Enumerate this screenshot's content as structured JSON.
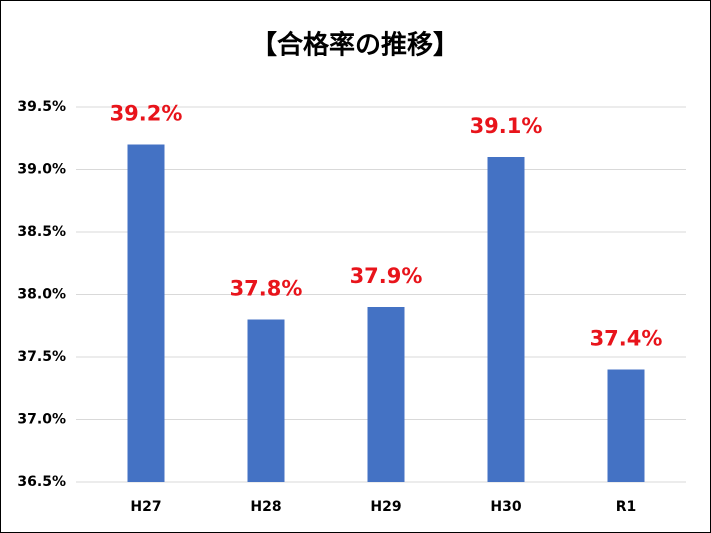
{
  "chart_data": {
    "type": "bar",
    "title": "【合格率の推移】",
    "categories": [
      "H27",
      "H28",
      "H29",
      "H30",
      "R1"
    ],
    "values": [
      39.2,
      37.8,
      37.9,
      39.1,
      37.4
    ],
    "value_labels": [
      "39.2%",
      "37.8%",
      "37.9%",
      "39.1%",
      "37.4%"
    ],
    "color": "#4472c4",
    "ylim": [
      36.5,
      39.5
    ],
    "yticks": [
      {
        "value": 36.5,
        "label": "36.5%"
      },
      {
        "value": 37.0,
        "label": "37.0%"
      },
      {
        "value": 37.5,
        "label": "37.5%"
      },
      {
        "value": 38.0,
        "label": "38.0%"
      },
      {
        "value": 38.5,
        "label": "38.5%"
      },
      {
        "value": 39.0,
        "label": "39.0%"
      },
      {
        "value": 39.5,
        "label": "39.5%"
      }
    ],
    "grid": true
  }
}
